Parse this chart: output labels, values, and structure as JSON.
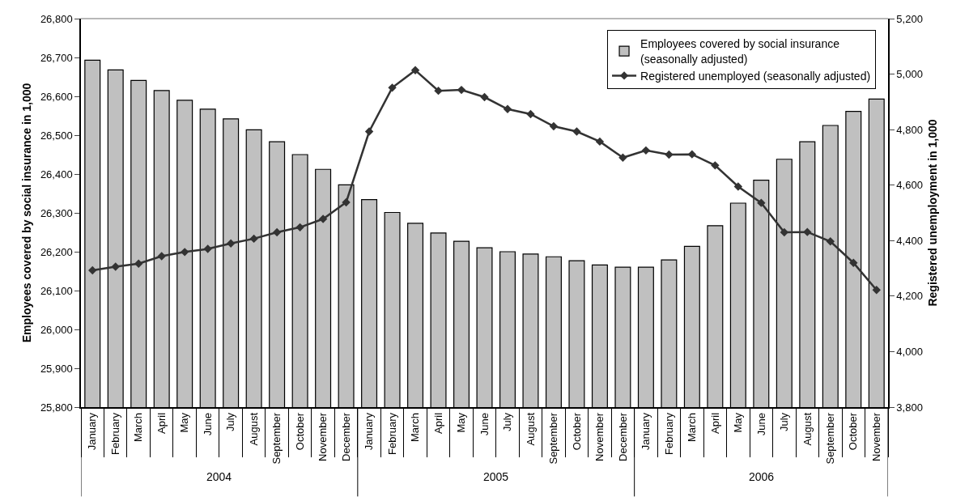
{
  "chart_data": {
    "type": "bar",
    "categories": [
      "January",
      "February",
      "March",
      "April",
      "May",
      "June",
      "July",
      "August",
      "September",
      "October",
      "November",
      "December",
      "January",
      "February",
      "March",
      "April",
      "May",
      "June",
      "July",
      "August",
      "September",
      "October",
      "November",
      "December",
      "January",
      "February",
      "March",
      "April",
      "May",
      "June",
      "July",
      "August",
      "September",
      "October",
      "November"
    ],
    "series": [
      {
        "name": "Employees covered by social insurance\n(seasonally adjusted)",
        "color": "#c0c0c0",
        "values": [
          26693,
          26668,
          26641,
          26615,
          26590,
          26567,
          26542,
          26514,
          26483,
          26450,
          26412,
          26372,
          26334,
          26301,
          26273,
          26248,
          26227,
          26210,
          26200,
          26194,
          26187,
          26177,
          26166,
          26160,
          26160,
          26179,
          26214,
          26267,
          26325,
          26384,
          26438,
          26483,
          26525,
          26561,
          26593
        ]
      },
      {
        "name": "Registered unemployed (seasonally adjusted)",
        "type": "line",
        "axis": "y2",
        "color": "#333333",
        "marker": "diamond",
        "line_style": "solid",
        "values": [
          4293,
          4306,
          4317,
          4344,
          4359,
          4370,
          4390,
          4407,
          4430,
          4448,
          4478,
          4538,
          4793,
          4951,
          5014,
          4940,
          4943,
          4917,
          4874,
          4856,
          4812,
          4793,
          4757,
          4699,
          4725,
          4710,
          4711,
          4671,
          4595,
          4536,
          4430,
          4431,
          4397,
          4320,
          4222
        ]
      }
    ],
    "ylabel": "Employees covered by social insurance in 1,000",
    "y2label": "Registered unemployment in 1,000",
    "ylim": [
      25800,
      26800
    ],
    "yticks": [
      {
        "value": 25800,
        "label": "25,800"
      },
      {
        "value": 25900,
        "label": "25,900"
      },
      {
        "value": 26000,
        "label": "26,000"
      },
      {
        "value": 26100,
        "label": "26,100"
      },
      {
        "value": 26200,
        "label": "26,200"
      },
      {
        "value": 26300,
        "label": "26,300"
      },
      {
        "value": 26400,
        "label": "26,400"
      },
      {
        "value": 26500,
        "label": "26,500"
      },
      {
        "value": 26600,
        "label": "26,600"
      },
      {
        "value": 26700,
        "label": "26,700"
      },
      {
        "value": 26800,
        "label": "26,800"
      }
    ],
    "y2lim": [
      3800,
      5200
    ],
    "y2ticks": [
      {
        "value": 3800,
        "label": "3,800"
      },
      {
        "value": 4000,
        "label": "4,000"
      },
      {
        "value": 4200,
        "label": "4,200"
      },
      {
        "value": 4400,
        "label": "4,400"
      },
      {
        "value": 4600,
        "label": "4,600"
      },
      {
        "value": 4800,
        "label": "4,800"
      },
      {
        "value": 5000,
        "label": "5,000"
      },
      {
        "value": 5200,
        "label": "5,200"
      }
    ],
    "annotations": [
      "2004",
      "2005",
      "2006"
    ],
    "legend": "top right"
  }
}
